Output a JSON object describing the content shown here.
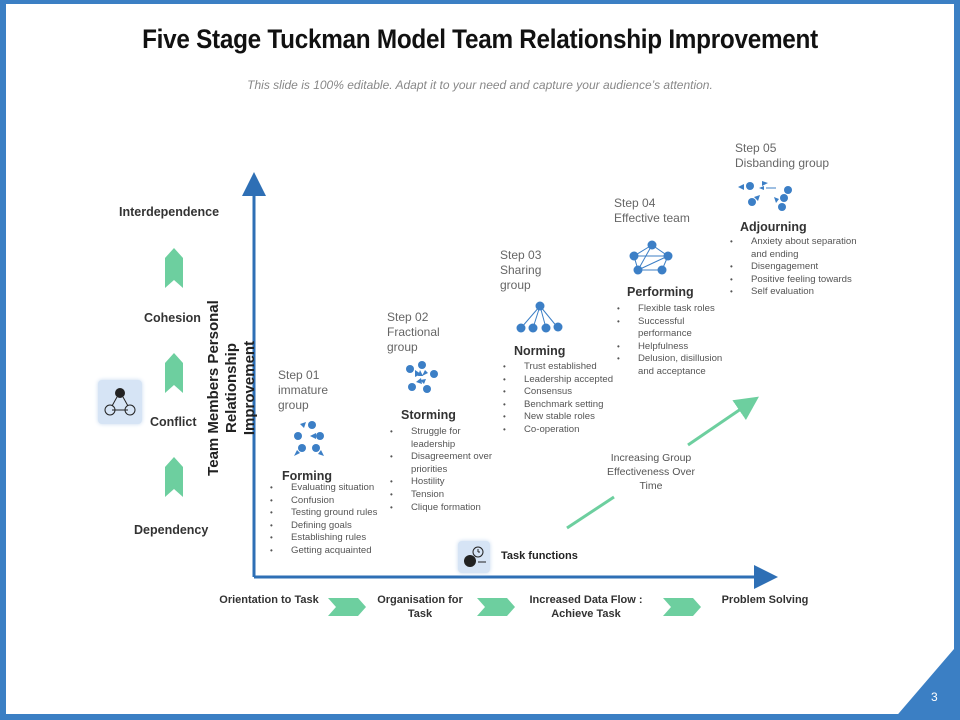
{
  "title": "Five Stage Tuckman Model Team Relationship Improvement",
  "subtitle": "This slide is 100% editable. Adapt it to your need and capture your audience’s attention.",
  "y_axis_label": [
    "Team Members Personal Relationship",
    "Improvement"
  ],
  "levels": [
    "Interdependence",
    "Cohesion",
    "Conflict",
    "Dependency"
  ],
  "stages": [
    {
      "step": "Step 01\nimmature\ngroup",
      "name": "Forming",
      "bullets": [
        "Evaluating situation",
        "Confusion",
        "Testing ground rules",
        "Defining goals",
        "Establishing rules",
        "Getting acquainted"
      ]
    },
    {
      "step": "Step 02\nFractional\ngroup",
      "name": "Storming",
      "bullets": [
        "Struggle for leadership",
        "Disagreement over priorities",
        "Hostility",
        "Tension",
        "Clique  formation"
      ]
    },
    {
      "step": "Step 03\nSharing\ngroup",
      "name": "Norming",
      "bullets": [
        "Trust established",
        "Leadership accepted",
        "Consensus",
        "Benchmark setting",
        "New stable roles",
        "Co-operation"
      ]
    },
    {
      "step": "Step 04\nEffective  team",
      "name": "Performing",
      "bullets": [
        "Flexible task roles",
        "Successful performance",
        "Helpfulness",
        "Delusion, disillusion and acceptance"
      ]
    },
    {
      "step": "Step 05\nDisbanding  group",
      "name": "Adjourning",
      "bullets": [
        "Anxiety about separation and ending",
        "Disengagement",
        "Positive feeling towards",
        "Self evaluation"
      ]
    }
  ],
  "arrow_label": "Increasing Group Effectiveness Over Time",
  "task_functions": "Task functions",
  "bottom_flow": [
    "Orientation to Task",
    "Organisation for Task",
    "Increased Data Flow : Achieve Task",
    "Problem Solving"
  ],
  "page_number": "3",
  "colors": {
    "frame": "#3b7fc4",
    "axis": "#2e6fb5",
    "accent_green": "#6dcf9f",
    "node": "#3c7fc6"
  }
}
